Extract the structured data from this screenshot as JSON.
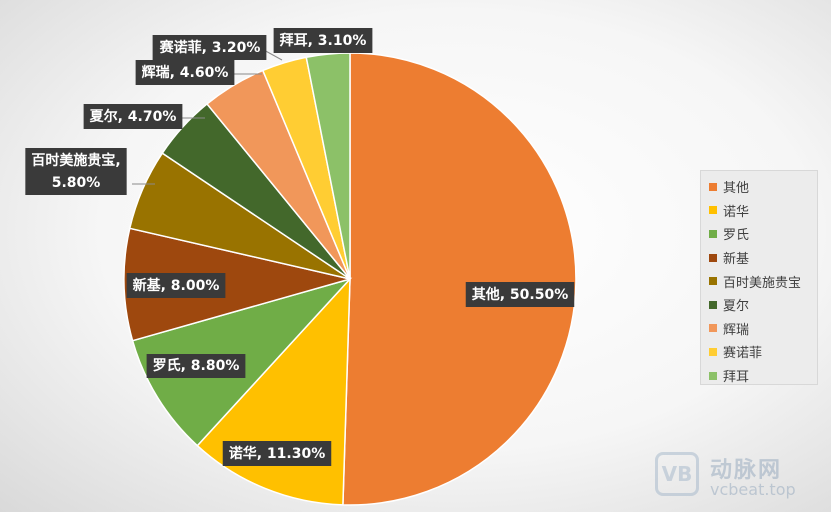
{
  "chart_data": {
    "type": "pie",
    "title": "",
    "categories": [
      "其他",
      "诺华",
      "罗氏",
      "新基",
      "百时美施贵宝",
      "夏尔",
      "辉瑞",
      "赛诺菲",
      "拜耳"
    ],
    "values": [
      50.5,
      11.3,
      8.8,
      8.0,
      5.8,
      4.7,
      4.6,
      3.2,
      3.1
    ],
    "unit": "%",
    "data_labels": [
      "其他, 50.50%",
      "诺华, 11.30%",
      "罗氏, 8.80%",
      "新基, 8.00%",
      "百时美施贵宝, 5.80%",
      "夏尔, 4.70%",
      "辉瑞, 4.60%",
      "赛诺菲, 3.20%",
      "拜耳, 3.10%"
    ],
    "colors": [
      "#ED7D31",
      "#FFC000",
      "#70AD47",
      "#9E480E",
      "#997300",
      "#43682B",
      "#F1975A",
      "#FFCD33",
      "#8CC168"
    ],
    "start_angle_deg": 0,
    "direction": "clockwise",
    "legend_position": "right"
  },
  "watermark": {
    "logo": "VB",
    "brand": "动脉网",
    "site": "vcbeat.top"
  }
}
